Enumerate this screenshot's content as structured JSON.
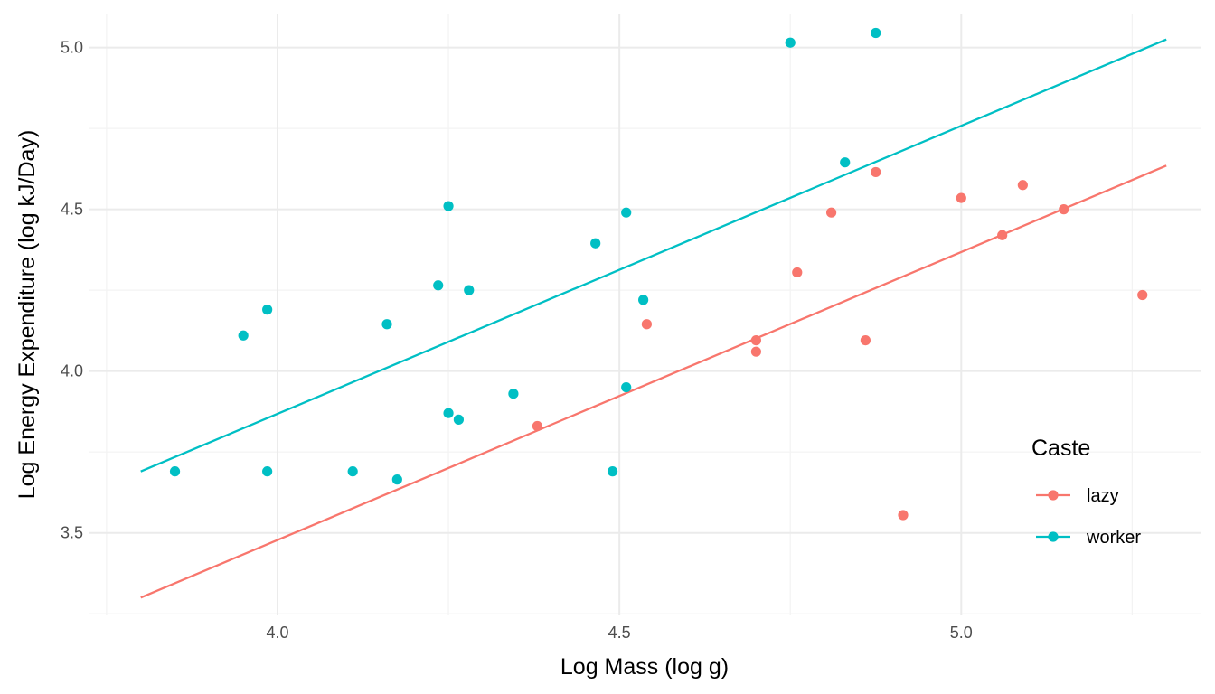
{
  "chart_data": {
    "type": "scatter",
    "title": "",
    "xlabel": "Log Mass (log g)",
    "ylabel": "Log Energy Expenditure (log kJ/Day)",
    "xlim": [
      3.725,
      5.35
    ],
    "ylim": [
      3.245,
      5.105
    ],
    "x_ticks": [
      4.0,
      4.5,
      5.0
    ],
    "x_tick_labels": [
      "4.0",
      "4.5",
      "5.0"
    ],
    "y_ticks": [
      3.5,
      4.0,
      4.5,
      5.0
    ],
    "y_tick_labels": [
      "3.5",
      "4.0",
      "4.5",
      "5.0"
    ],
    "grid": true,
    "legend": {
      "title": "Caste",
      "placement": "right-bottom",
      "entries": [
        "lazy",
        "worker"
      ]
    },
    "series": [
      {
        "name": "lazy",
        "color": "#F8766D",
        "points": [
          {
            "x": 4.38,
            "y": 3.83
          },
          {
            "x": 4.54,
            "y": 4.145
          },
          {
            "x": 4.7,
            "y": 4.095
          },
          {
            "x": 4.7,
            "y": 4.06
          },
          {
            "x": 4.76,
            "y": 4.305
          },
          {
            "x": 4.81,
            "y": 4.49
          },
          {
            "x": 4.86,
            "y": 4.095
          },
          {
            "x": 4.875,
            "y": 4.615
          },
          {
            "x": 4.915,
            "y": 3.555
          },
          {
            "x": 5.0,
            "y": 4.535
          },
          {
            "x": 5.06,
            "y": 4.42
          },
          {
            "x": 5.09,
            "y": 4.575
          },
          {
            "x": 5.15,
            "y": 4.5
          },
          {
            "x": 5.265,
            "y": 4.235
          }
        ],
        "fit": [
          {
            "x": 3.8,
            "y": 3.3
          },
          {
            "x": 5.3,
            "y": 4.635
          }
        ]
      },
      {
        "name": "worker",
        "color": "#00BFC4",
        "points": [
          {
            "x": 3.85,
            "y": 3.69
          },
          {
            "x": 3.95,
            "y": 4.11
          },
          {
            "x": 3.985,
            "y": 4.19
          },
          {
            "x": 3.985,
            "y": 3.69
          },
          {
            "x": 4.11,
            "y": 3.69
          },
          {
            "x": 4.16,
            "y": 4.145
          },
          {
            "x": 4.175,
            "y": 3.665
          },
          {
            "x": 4.235,
            "y": 4.265
          },
          {
            "x": 4.25,
            "y": 4.51
          },
          {
            "x": 4.25,
            "y": 3.87
          },
          {
            "x": 4.265,
            "y": 3.85
          },
          {
            "x": 4.28,
            "y": 4.25
          },
          {
            "x": 4.345,
            "y": 3.93
          },
          {
            "x": 4.465,
            "y": 4.395
          },
          {
            "x": 4.49,
            "y": 3.69
          },
          {
            "x": 4.51,
            "y": 4.49
          },
          {
            "x": 4.51,
            "y": 3.95
          },
          {
            "x": 4.535,
            "y": 4.22
          },
          {
            "x": 4.75,
            "y": 5.015
          },
          {
            "x": 4.83,
            "y": 4.645
          },
          {
            "x": 4.875,
            "y": 5.045
          }
        ],
        "fit": [
          {
            "x": 3.8,
            "y": 3.69
          },
          {
            "x": 5.3,
            "y": 5.025
          }
        ]
      }
    ]
  }
}
